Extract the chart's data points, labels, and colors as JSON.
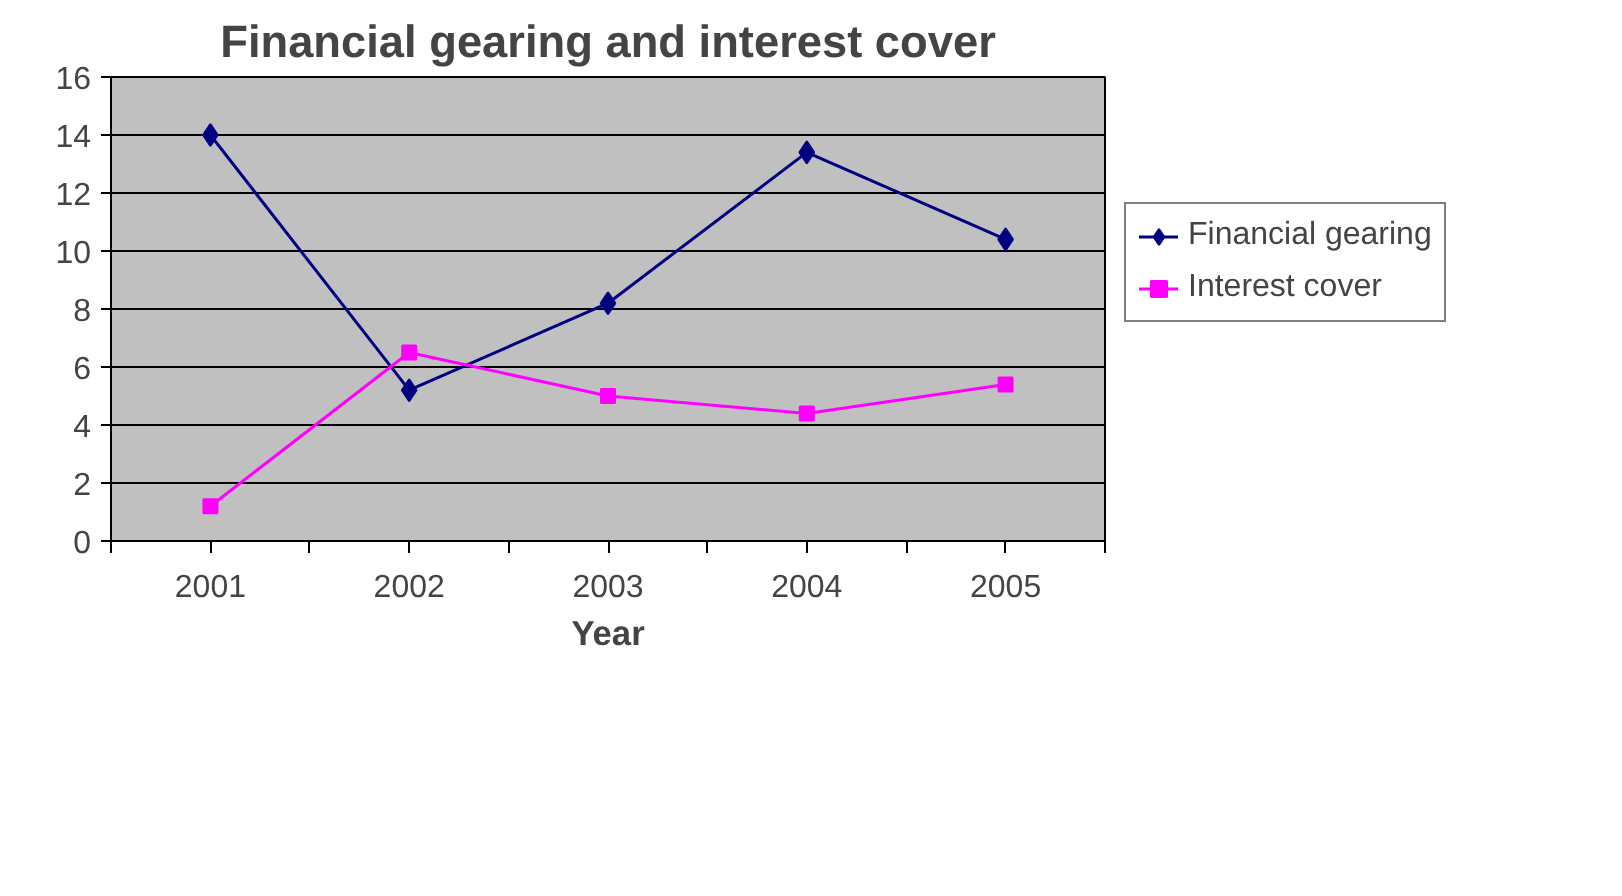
{
  "chart_data": {
    "type": "line",
    "title": "Financial gearing and interest cover",
    "xlabel": "Year",
    "categories": [
      "2001",
      "2002",
      "2003",
      "2004",
      "2005"
    ],
    "series": [
      {
        "name": "Financial gearing",
        "color": "#000080",
        "marker": "diamond",
        "values": [
          14.0,
          5.2,
          8.2,
          13.4,
          10.4
        ]
      },
      {
        "name": "Interest cover",
        "color": "#ff00ff",
        "marker": "square",
        "values": [
          1.2,
          6.5,
          5.0,
          4.4,
          5.4
        ]
      }
    ],
    "ylim": [
      0,
      16
    ],
    "yticks": [
      0,
      2,
      4,
      6,
      8,
      10,
      12,
      14,
      16
    ],
    "grid": "y",
    "legend": "right",
    "line_style": "solid"
  }
}
